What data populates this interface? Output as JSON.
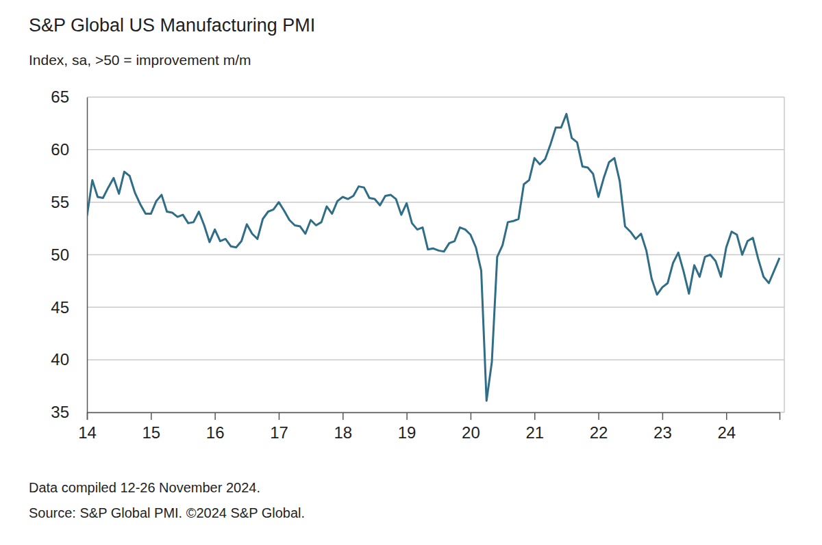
{
  "chart_data": {
    "type": "line",
    "title": "S&P Global US Manufacturing PMI",
    "subtitle": "Index, sa, >50 = improvement m/m",
    "notes": [
      "Data compiled 12-26 November 2024.",
      "Source: S&P Global PMI. ©2024 S&P Global."
    ],
    "color": "#306d87",
    "grid": true,
    "ylim": [
      35,
      65
    ],
    "yticks": [
      35,
      40,
      45,
      50,
      55,
      60,
      65
    ],
    "categories": [
      "14",
      null,
      null,
      null,
      null,
      null,
      null,
      null,
      null,
      null,
      null,
      null,
      "15",
      null,
      null,
      null,
      null,
      null,
      null,
      null,
      null,
      null,
      null,
      null,
      "16",
      null,
      null,
      null,
      null,
      null,
      null,
      null,
      null,
      null,
      null,
      null,
      "17",
      null,
      null,
      null,
      null,
      null,
      null,
      null,
      null,
      null,
      null,
      null,
      "18",
      null,
      null,
      null,
      null,
      null,
      null,
      null,
      null,
      null,
      null,
      null,
      "19",
      null,
      null,
      null,
      null,
      null,
      null,
      null,
      null,
      null,
      null,
      null,
      "20",
      null,
      null,
      null,
      null,
      null,
      null,
      null,
      null,
      null,
      null,
      null,
      "21",
      null,
      null,
      null,
      null,
      null,
      null,
      null,
      null,
      null,
      null,
      null,
      "22",
      null,
      null,
      null,
      null,
      null,
      null,
      null,
      null,
      null,
      null,
      null,
      "23",
      null,
      null,
      null,
      null,
      null,
      null,
      null,
      null,
      null,
      null,
      null,
      "24",
      null,
      null,
      null,
      null,
      null,
      null,
      null,
      null,
      null,
      null
    ],
    "values": [
      53.7,
      57.1,
      55.5,
      55.4,
      56.4,
      57.3,
      55.8,
      57.9,
      57.5,
      55.9,
      54.8,
      53.9,
      53.9,
      55.1,
      55.7,
      54.1,
      54.0,
      53.6,
      53.8,
      53.0,
      53.1,
      54.1,
      52.8,
      51.2,
      52.4,
      51.3,
      51.5,
      50.8,
      50.7,
      51.3,
      52.9,
      52.0,
      51.5,
      53.4,
      54.1,
      54.3,
      55.0,
      54.2,
      53.3,
      52.8,
      52.7,
      52.0,
      53.3,
      52.8,
      53.1,
      54.6,
      53.9,
      55.1,
      55.5,
      55.3,
      55.6,
      56.5,
      56.4,
      55.4,
      55.3,
      54.7,
      55.6,
      55.7,
      55.3,
      53.8,
      54.9,
      53.0,
      52.4,
      52.6,
      50.5,
      50.6,
      50.4,
      50.3,
      51.1,
      51.3,
      52.6,
      52.4,
      51.9,
      50.7,
      48.5,
      36.1,
      39.8,
      49.8,
      50.9,
      53.1,
      53.2,
      53.4,
      56.7,
      57.1,
      59.2,
      58.6,
      59.1,
      60.5,
      62.1,
      62.1,
      63.4,
      61.1,
      60.7,
      58.4,
      58.3,
      57.7,
      55.5,
      57.3,
      58.8,
      59.2,
      57.0,
      52.7,
      52.2,
      51.5,
      52.0,
      50.4,
      47.7,
      46.2,
      46.9,
      47.3,
      49.2,
      50.2,
      48.4,
      46.3,
      49.0,
      47.9,
      49.8,
      50.0,
      49.4,
      47.9,
      50.7,
      52.2,
      51.9,
      50.0,
      51.3,
      51.6,
      49.6,
      47.9,
      47.3,
      48.5,
      49.7
    ]
  }
}
